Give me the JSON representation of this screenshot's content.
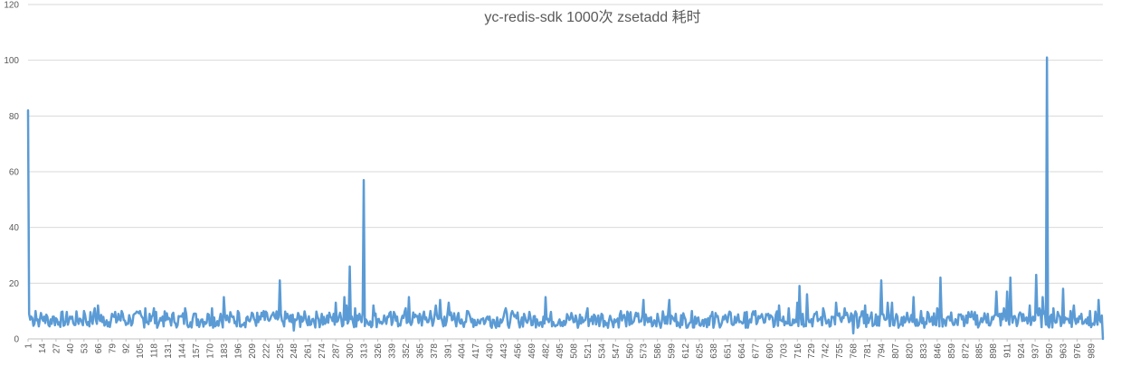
{
  "chart_data": {
    "type": "line",
    "title": "yc-redis-sdk 1000次 zsetadd 耗时",
    "xlabel": "",
    "ylabel": "",
    "xlim": [
      1,
      1000
    ],
    "ylim": [
      0,
      120
    ],
    "y_ticks": [
      0,
      20,
      40,
      60,
      80,
      100,
      120
    ],
    "x_tick_labels": [
      "1",
      "14",
      "27",
      "40",
      "53",
      "66",
      "79",
      "92",
      "105",
      "118",
      "131",
      "144",
      "157",
      "170",
      "183",
      "196",
      "209",
      "222",
      "235",
      "248",
      "261",
      "274",
      "287",
      "300",
      "313",
      "326",
      "339",
      "352",
      "365",
      "378",
      "391",
      "404",
      "417",
      "430",
      "443",
      "456",
      "469",
      "482",
      "495",
      "508",
      "521",
      "534",
      "547",
      "560",
      "573",
      "586",
      "599",
      "612",
      "625",
      "638",
      "651",
      "664",
      "677",
      "690",
      "703",
      "716",
      "729",
      "742",
      "755",
      "768",
      "781",
      "794",
      "807",
      "820",
      "833",
      "846",
      "859",
      "872",
      "885",
      "898",
      "911",
      "924",
      "937",
      "950",
      "963",
      "976",
      "989"
    ],
    "grid": "horizontal",
    "legend": "none",
    "color": "#5b9bd5",
    "baseline_range": [
      4,
      10
    ],
    "series": [
      {
        "values_sparse": [
          [
            1,
            82
          ],
          [
            2,
            9
          ],
          [
            4,
            8
          ],
          [
            8,
            10
          ],
          [
            12,
            7
          ],
          [
            16,
            8
          ],
          [
            20,
            5
          ],
          [
            25,
            8
          ],
          [
            30,
            6
          ],
          [
            35,
            5
          ],
          [
            40,
            8
          ],
          [
            44,
            5
          ],
          [
            50,
            7
          ],
          [
            53,
            10
          ],
          [
            56,
            5
          ],
          [
            60,
            7
          ],
          [
            63,
            11
          ],
          [
            66,
            12
          ],
          [
            70,
            6
          ],
          [
            76,
            6
          ],
          [
            79,
            9
          ],
          [
            85,
            9
          ],
          [
            88,
            10
          ],
          [
            92,
            5
          ],
          [
            96,
            7
          ],
          [
            100,
            9
          ],
          [
            105,
            10
          ],
          [
            110,
            11
          ],
          [
            114,
            9
          ],
          [
            118,
            11
          ],
          [
            122,
            5
          ],
          [
            126,
            8
          ],
          [
            131,
            7
          ],
          [
            137,
            6
          ],
          [
            142,
            8
          ],
          [
            147,
            11
          ],
          [
            152,
            6
          ],
          [
            157,
            9
          ],
          [
            163,
            7
          ],
          [
            168,
            9
          ],
          [
            172,
            11
          ],
          [
            176,
            5
          ],
          [
            180,
            9
          ],
          [
            183,
            15
          ],
          [
            187,
            7
          ],
          [
            192,
            8
          ],
          [
            196,
            10
          ],
          [
            201,
            5
          ],
          [
            205,
            8
          ],
          [
            210,
            9
          ],
          [
            215,
            6
          ],
          [
            220,
            10
          ],
          [
            224,
            7
          ],
          [
            230,
            8
          ],
          [
            233,
            7
          ],
          [
            235,
            21
          ],
          [
            238,
            6
          ],
          [
            242,
            9
          ],
          [
            246,
            6
          ],
          [
            248,
            3
          ],
          [
            251,
            7
          ],
          [
            255,
            8
          ],
          [
            260,
            6
          ],
          [
            265,
            7
          ],
          [
            270,
            8
          ],
          [
            274,
            9
          ],
          [
            278,
            6
          ],
          [
            282,
            8
          ],
          [
            287,
            13
          ],
          [
            290,
            8
          ],
          [
            295,
            15
          ],
          [
            297,
            12
          ],
          [
            300,
            26
          ],
          [
            302,
            8
          ],
          [
            305,
            11
          ],
          [
            309,
            9
          ],
          [
            311,
            6
          ],
          [
            313,
            57
          ],
          [
            315,
            7
          ],
          [
            318,
            5
          ],
          [
            322,
            12
          ],
          [
            326,
            7
          ],
          [
            331,
            6
          ],
          [
            335,
            8
          ],
          [
            339,
            5
          ],
          [
            344,
            8
          ],
          [
            348,
            7
          ],
          [
            352,
            11
          ],
          [
            355,
            15
          ],
          [
            358,
            6
          ],
          [
            362,
            8
          ],
          [
            365,
            9
          ],
          [
            370,
            7
          ],
          [
            375,
            10
          ],
          [
            380,
            12
          ],
          [
            384,
            14
          ],
          [
            388,
            8
          ],
          [
            392,
            13
          ],
          [
            396,
            7
          ],
          [
            400,
            8
          ],
          [
            404,
            7
          ],
          [
            409,
            10
          ],
          [
            413,
            6
          ],
          [
            418,
            5
          ],
          [
            422,
            7
          ],
          [
            426,
            6
          ],
          [
            430,
            8
          ],
          [
            435,
            5
          ],
          [
            440,
            7
          ],
          [
            445,
            11
          ],
          [
            449,
            6
          ],
          [
            453,
            8
          ],
          [
            457,
            6
          ],
          [
            462,
            9
          ],
          [
            466,
            7
          ],
          [
            470,
            5
          ],
          [
            474,
            7
          ],
          [
            478,
            6
          ],
          [
            480,
            8
          ],
          [
            482,
            15
          ],
          [
            485,
            6
          ],
          [
            490,
            5
          ],
          [
            495,
            7
          ],
          [
            500,
            5
          ],
          [
            503,
            8
          ],
          [
            508,
            6
          ],
          [
            512,
            4
          ],
          [
            517,
            6
          ],
          [
            521,
            11
          ],
          [
            525,
            8
          ],
          [
            530,
            7
          ],
          [
            534,
            9
          ],
          [
            538,
            5
          ],
          [
            543,
            7
          ],
          [
            547,
            6
          ],
          [
            552,
            10
          ],
          [
            556,
            7
          ],
          [
            560,
            5
          ],
          [
            565,
            8
          ],
          [
            569,
            6
          ],
          [
            573,
            14
          ],
          [
            577,
            6
          ],
          [
            582,
            5
          ],
          [
            586,
            9
          ],
          [
            590,
            6
          ],
          [
            594,
            8
          ],
          [
            597,
            14
          ],
          [
            601,
            7
          ],
          [
            605,
            6
          ],
          [
            609,
            5
          ],
          [
            612,
            7
          ],
          [
            617,
            6
          ],
          [
            621,
            8
          ],
          [
            625,
            5
          ],
          [
            630,
            7
          ],
          [
            634,
            5
          ],
          [
            638,
            4
          ],
          [
            643,
            6
          ],
          [
            647,
            8
          ],
          [
            651,
            6
          ],
          [
            656,
            5
          ],
          [
            660,
            7
          ],
          [
            664,
            6
          ],
          [
            668,
            4
          ],
          [
            672,
            7
          ],
          [
            677,
            10
          ],
          [
            682,
            8
          ],
          [
            686,
            6
          ],
          [
            690,
            7
          ],
          [
            695,
            5
          ],
          [
            699,
            12
          ],
          [
            703,
            8
          ],
          [
            708,
            11
          ],
          [
            712,
            7
          ],
          [
            716,
            13
          ],
          [
            718,
            19
          ],
          [
            721,
            9
          ],
          [
            725,
            16
          ],
          [
            728,
            6
          ],
          [
            732,
            9
          ],
          [
            736,
            7
          ],
          [
            740,
            11
          ],
          [
            744,
            6
          ],
          [
            748,
            8
          ],
          [
            752,
            13
          ],
          [
            756,
            7
          ],
          [
            760,
            11
          ],
          [
            764,
            6
          ],
          [
            768,
            2
          ],
          [
            771,
            9
          ],
          [
            775,
            8
          ],
          [
            779,
            12
          ],
          [
            783,
            7
          ],
          [
            787,
            5
          ],
          [
            791,
            8
          ],
          [
            794,
            21
          ],
          [
            797,
            7
          ],
          [
            800,
            13
          ],
          [
            804,
            13
          ],
          [
            807,
            7
          ],
          [
            811,
            5
          ],
          [
            815,
            8
          ],
          [
            820,
            6
          ],
          [
            824,
            15
          ],
          [
            827,
            7
          ],
          [
            831,
            10
          ],
          [
            835,
            6
          ],
          [
            838,
            9
          ],
          [
            842,
            5
          ],
          [
            846,
            11
          ],
          [
            849,
            22
          ],
          [
            852,
            7
          ],
          [
            856,
            8
          ],
          [
            860,
            6
          ],
          [
            865,
            5
          ],
          [
            869,
            7
          ],
          [
            872,
            6
          ],
          [
            876,
            8
          ],
          [
            880,
            7
          ],
          [
            885,
            5
          ],
          [
            889,
            7
          ],
          [
            893,
            9
          ],
          [
            898,
            7
          ],
          [
            901,
            17
          ],
          [
            904,
            9
          ],
          [
            908,
            11
          ],
          [
            911,
            17
          ],
          [
            914,
            22
          ],
          [
            917,
            8
          ],
          [
            921,
            6
          ],
          [
            924,
            9
          ],
          [
            928,
            7
          ],
          [
            932,
            12
          ],
          [
            935,
            8
          ],
          [
            938,
            23
          ],
          [
            941,
            11
          ],
          [
            944,
            15
          ],
          [
            948,
            101
          ],
          [
            951,
            8
          ],
          [
            954,
            11
          ],
          [
            957,
            6
          ],
          [
            960,
            8
          ],
          [
            963,
            18
          ],
          [
            966,
            7
          ],
          [
            970,
            10
          ],
          [
            973,
            12
          ],
          [
            977,
            6
          ],
          [
            980,
            9
          ],
          [
            984,
            7
          ],
          [
            988,
            10
          ],
          [
            992,
            5
          ],
          [
            996,
            14
          ],
          [
            998,
            6
          ],
          [
            1000,
            0
          ]
        ]
      }
    ]
  }
}
